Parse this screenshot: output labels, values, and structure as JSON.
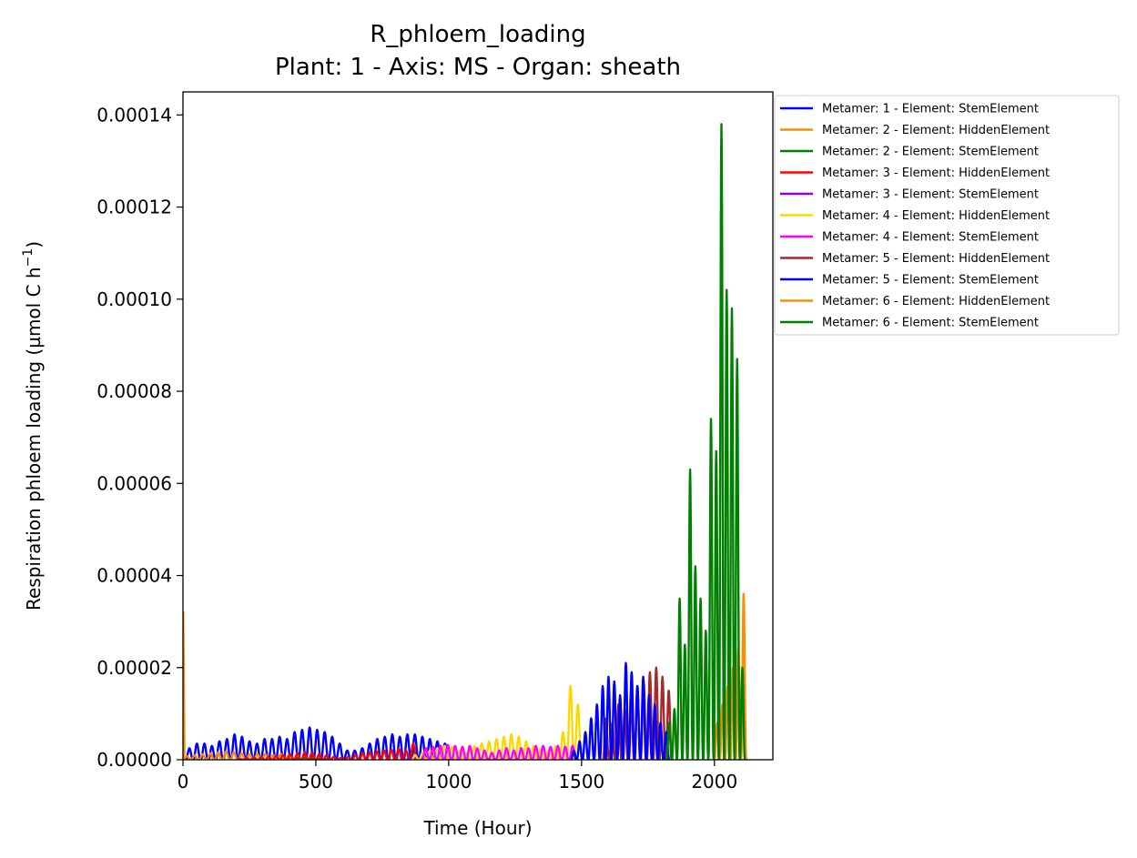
{
  "chart_data": {
    "type": "line",
    "title": "R_phloem_loading",
    "subtitle": "Plant: 1 - Axis: MS - Organ: sheath",
    "xlabel": "Time (Hour)",
    "ylabel_main": "Respiration phloem loading (µmol C h",
    "ylabel_sup": "−1",
    "ylabel_close": ")",
    "xlim": [
      0,
      2220
    ],
    "ylim": [
      0,
      0.000145
    ],
    "xticks": [
      0,
      500,
      1000,
      1500,
      2000
    ],
    "xtick_labels": [
      "0",
      "500",
      "1000",
      "1500",
      "2000"
    ],
    "yticks": [
      0,
      2e-05,
      4e-05,
      6e-05,
      8e-05,
      0.0001,
      0.00012,
      0.00014
    ],
    "ytick_labels": [
      "0.00000",
      "0.00002",
      "0.00004",
      "0.00006",
      "0.00008",
      "0.00010",
      "0.00012",
      "0.00014"
    ],
    "grid": false,
    "legend_position": "outside-upper-right",
    "series": [
      {
        "name": "Metamer: 1 - Element: StemElement",
        "color": "#0000ff",
        "t_start": 10,
        "t_end": 1000,
        "peaks": [
          2.5e-06,
          3.5e-06,
          3.5e-06,
          3e-06,
          4e-06,
          4.5e-06,
          5.5e-06,
          5e-06,
          4e-06,
          3.5e-06,
          4.5e-06,
          4.5e-06,
          5e-06,
          4.5e-06,
          6e-06,
          6.5e-06,
          7e-06,
          6.5e-06,
          6e-06,
          5e-06,
          3.5e-06,
          2e-06,
          2e-06,
          2.5e-06,
          3.5e-06,
          4.5e-06,
          5e-06,
          5.5e-06,
          5e-06,
          5.5e-06,
          5.5e-06,
          5e-06,
          4.5e-06,
          4e-06,
          3.5e-06
        ]
      },
      {
        "name": "Metamer: 2 - Element: HiddenElement",
        "color": "#ff8c00",
        "t_start": 0,
        "t_end": 560,
        "spike": [
          0,
          3.2e-05
        ],
        "peaks": [
          8e-07,
          1e-06,
          1.2e-06,
          1.4e-06,
          1.6e-06,
          1.8e-06,
          1.6e-06,
          1.4e-06,
          1.2e-06,
          1.2e-06,
          1.2e-06,
          1e-06,
          1.2e-06,
          1e-06,
          8e-07,
          6e-07,
          4e-07,
          3e-07,
          2e-07
        ]
      },
      {
        "name": "Metamer: 2 - Element: StemElement",
        "color": "#008000",
        "t_start": 420,
        "t_end": 560,
        "peaks": [
          4e-07,
          5e-07,
          4e-07,
          3e-07,
          2e-07
        ]
      },
      {
        "name": "Metamer: 3 - Element: HiddenElement",
        "color": "#ff0000",
        "t_start": 200,
        "t_end": 880,
        "peaks": [
          2e-07,
          3e-07,
          4e-07,
          5e-07,
          6e-07,
          8e-07,
          1e-06,
          1.2e-06,
          1.4e-06,
          1.6e-06,
          1.5e-06,
          1.2e-06,
          1e-06,
          6e-07,
          4e-07,
          6e-07,
          1e-06,
          1.4e-06,
          1.6e-06,
          1.8e-06,
          2e-06,
          2.2e-06,
          2.4e-06,
          2e-06,
          3.5e-06
        ]
      },
      {
        "name": "Metamer: 3 - Element: StemElement",
        "color": "#9400d3",
        "t_start": 840,
        "t_end": 1000,
        "peaks": [
          4e-07,
          6e-07,
          8e-07,
          6e-07,
          4e-07,
          3e-07
        ]
      },
      {
        "name": "Metamer: 4 - Element: HiddenElement",
        "color": "#ffd700",
        "t_start": 860,
        "t_end": 1500,
        "peaks": [
          1e-06,
          1.5e-06,
          2e-06,
          2.5e-06,
          3e-06,
          2.8e-06,
          2e-06,
          1.5e-06,
          3e-06,
          3.5e-06,
          4e-06,
          4.5e-06,
          5e-06,
          5.5e-06,
          5e-06,
          4e-06,
          3e-06,
          2.5e-06,
          2e-06,
          3e-06,
          6e-06,
          1.6e-05,
          1.2e-05
        ]
      },
      {
        "name": "Metamer: 4 - Element: StemElement",
        "color": "#ff00ff",
        "t_start": 900,
        "t_end": 1480,
        "peaks": [
          2.5e-06,
          2.8e-06,
          3e-06,
          3.2e-06,
          3e-06,
          2.8e-06,
          3e-06,
          2.5e-06,
          2e-06,
          1.5e-06,
          2e-06,
          2.5e-06,
          2e-06,
          2.5e-06,
          2.5e-06,
          3e-06,
          3e-06,
          2.8e-06,
          3e-06,
          2.8e-06,
          3e-06
        ]
      },
      {
        "name": "Metamer: 5 - Element: HiddenElement",
        "color": "#a52a2a",
        "t_start": 1580,
        "t_end": 1840,
        "peaks": [
          9e-06,
          8e-06,
          1.2e-05,
          1.1e-05,
          1.5e-05,
          1.6e-05,
          1.7e-05,
          1.9e-05,
          2e-05,
          1.8e-05,
          1.5e-05
        ]
      },
      {
        "name": "Metamer: 5 - Element: StemElement",
        "color": "#0000ff",
        "t_start": 1460,
        "t_end": 1830,
        "peaks": [
          2e-06,
          4e-06,
          6e-06,
          9e-06,
          1.2e-05,
          1.6e-05,
          1.8e-05,
          1.7e-05,
          1.4e-05,
          2.1e-05,
          1.9e-05,
          1.6e-05,
          1.8e-05,
          1.4e-05,
          1.2e-05,
          8e-06,
          6e-06
        ]
      },
      {
        "name": "Metamer: 6 - Element: HiddenElement",
        "color": "#ff8c00",
        "t_start": 2000,
        "t_end": 2120,
        "peaks": [
          8e-06,
          1.2e-05,
          1.6e-05,
          2e-05,
          2.4e-05,
          3.6e-05
        ]
      },
      {
        "name": "Metamer: 6 - Element: StemElement",
        "color": "#008000",
        "t_start": 1820,
        "t_end": 2115,
        "peaks": [
          8e-06,
          1.1e-05,
          3.5e-05,
          2.5e-05,
          6.3e-05,
          4.2e-05,
          3.5e-05,
          2.8e-05,
          7.4e-05,
          6.7e-05,
          0.000138,
          0.000102,
          9.8e-05,
          8.7e-05,
          2e-05
        ]
      }
    ]
  }
}
